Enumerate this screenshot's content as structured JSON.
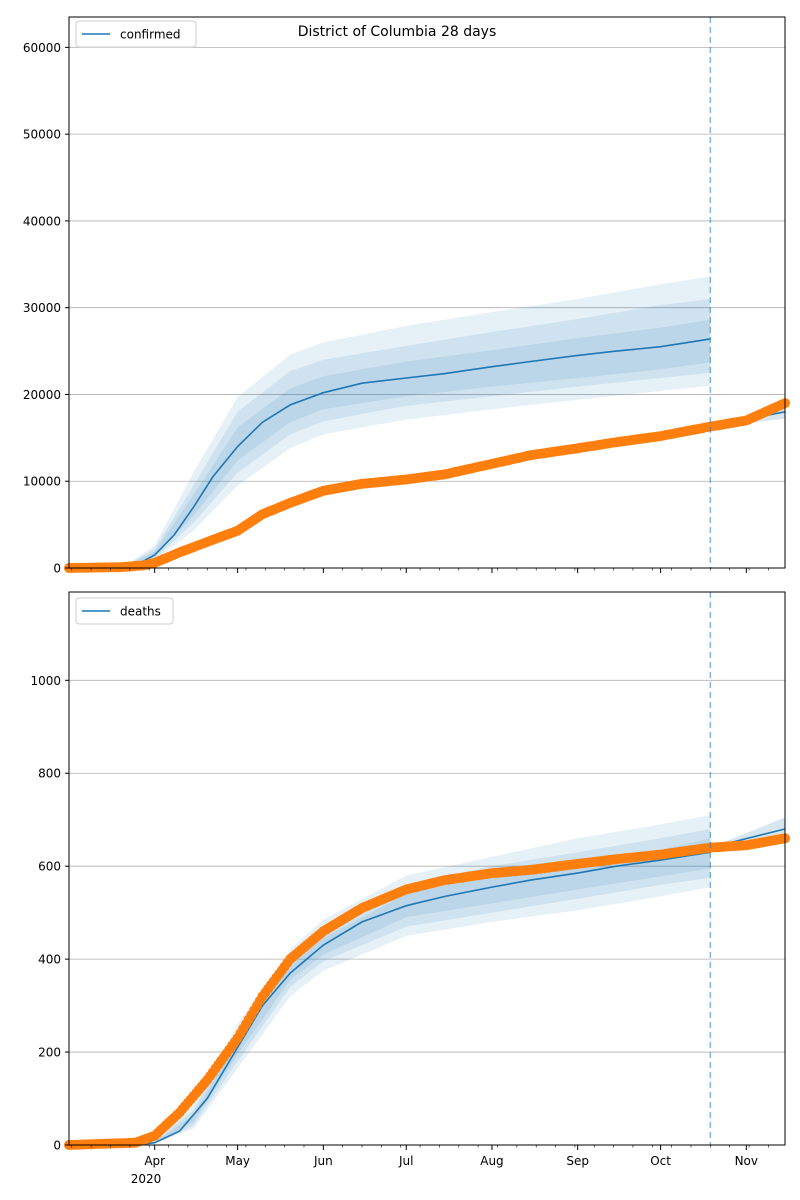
{
  "chart_data": [
    {
      "type": "line",
      "title": "District of Columbia 28 days",
      "legend": {
        "label": "confirmed",
        "placement": "top-left"
      },
      "x_range": [
        "2020-03-01",
        "2020-11-15"
      ],
      "ylim": [
        0,
        63500
      ],
      "y_ticks": [
        0,
        10000,
        20000,
        30000,
        40000,
        50000,
        60000
      ],
      "grid": "horizontal",
      "forecast_start": "2020-10-19",
      "colors": {
        "model": "#1f77b4",
        "observed": "#ff7f0e",
        "band": "#1f77b4"
      },
      "model_median": {
        "x": [
          "2020-03-20",
          "2020-03-25",
          "2020-04-01",
          "2020-04-08",
          "2020-04-15",
          "2020-04-22",
          "2020-05-01",
          "2020-05-10",
          "2020-05-20",
          "2020-06-01",
          "2020-06-15",
          "2020-07-01",
          "2020-07-15",
          "2020-08-01",
          "2020-08-15",
          "2020-09-01",
          "2020-09-15",
          "2020-10-01",
          "2020-10-19"
        ],
        "y": [
          0,
          300,
          1500,
          3800,
          7000,
          10500,
          14000,
          16800,
          18800,
          20200,
          21300,
          21900,
          22400,
          23200,
          23800,
          24500,
          25000,
          25500,
          26400
        ]
      },
      "bands": [
        {
          "x": [
            "2020-03-20",
            "2020-04-01",
            "2020-04-15",
            "2020-05-01",
            "2020-05-20",
            "2020-06-01",
            "2020-07-01",
            "2020-08-01",
            "2020-09-01",
            "2020-10-01",
            "2020-10-19"
          ],
          "lower": [
            0,
            900,
            4300,
            9500,
            13800,
            15400,
            17100,
            18300,
            19400,
            20400,
            21000
          ],
          "upper": [
            0,
            2600,
            11000,
            19700,
            24600,
            26000,
            27900,
            29500,
            31000,
            32700,
            33600
          ]
        },
        {
          "x": [
            "2020-03-20",
            "2020-04-01",
            "2020-04-15",
            "2020-05-01",
            "2020-05-20",
            "2020-06-01",
            "2020-07-01",
            "2020-08-01",
            "2020-09-01",
            "2020-10-01",
            "2020-10-19"
          ],
          "lower": [
            0,
            1100,
            5200,
            11000,
            15400,
            16900,
            18700,
            19800,
            20900,
            21900,
            22500
          ],
          "upper": [
            0,
            2200,
            9500,
            18000,
            22700,
            24000,
            25600,
            27200,
            28700,
            30300,
            31000
          ]
        },
        {
          "x": [
            "2020-03-20",
            "2020-04-01",
            "2020-04-15",
            "2020-05-01",
            "2020-05-20",
            "2020-06-01",
            "2020-07-01",
            "2020-08-01",
            "2020-09-01",
            "2020-10-01",
            "2020-10-19"
          ],
          "lower": [
            0,
            1300,
            6000,
            12400,
            16800,
            18300,
            19800,
            20900,
            21900,
            22900,
            23700
          ],
          "upper": [
            0,
            1900,
            8400,
            16200,
            20700,
            22100,
            23800,
            25100,
            26500,
            27700,
            28600
          ]
        }
      ],
      "model_forecast": {
        "x": [
          "2020-10-19",
          "2020-11-15"
        ],
        "y": [
          16300,
          18000
        ],
        "lower": [
          16300,
          17200
        ],
        "upper": [
          16300,
          18900
        ]
      },
      "observed": {
        "x": [
          "2020-03-01",
          "2020-03-20",
          "2020-03-28",
          "2020-04-01",
          "2020-04-10",
          "2020-04-20",
          "2020-05-01",
          "2020-05-10",
          "2020-05-20",
          "2020-06-01",
          "2020-06-15",
          "2020-07-01",
          "2020-07-15",
          "2020-08-01",
          "2020-08-15",
          "2020-09-01",
          "2020-09-15",
          "2020-10-01",
          "2020-10-19",
          "2020-11-01",
          "2020-11-15"
        ],
        "y": [
          0,
          100,
          300,
          600,
          1800,
          3000,
          4300,
          6200,
          7500,
          8900,
          9700,
          10200,
          10800,
          12000,
          13000,
          13800,
          14500,
          15200,
          16300,
          17000,
          19000
        ]
      }
    },
    {
      "type": "line",
      "title": "",
      "legend": {
        "label": "deaths",
        "placement": "top-left"
      },
      "x_range": [
        "2020-03-01",
        "2020-11-15"
      ],
      "ylim": [
        0,
        1190
      ],
      "y_ticks": [
        0,
        200,
        400,
        600,
        800,
        1000
      ],
      "x_ticks": [
        "Apr",
        "May",
        "Jun",
        "Jul",
        "Aug",
        "Sep",
        "Oct",
        "Nov"
      ],
      "x_year_label": "2020",
      "grid": "horizontal",
      "forecast_start": "2020-10-19",
      "colors": {
        "model": "#1f77b4",
        "observed": "#ff7f0e",
        "band": "#1f77b4"
      },
      "model_median": {
        "x": [
          "2020-03-25",
          "2020-04-01",
          "2020-04-10",
          "2020-04-20",
          "2020-05-01",
          "2020-05-10",
          "2020-05-20",
          "2020-06-01",
          "2020-06-15",
          "2020-07-01",
          "2020-07-15",
          "2020-08-01",
          "2020-08-15",
          "2020-09-01",
          "2020-09-15",
          "2020-10-01",
          "2020-10-19"
        ],
        "y": [
          0,
          5,
          30,
          100,
          210,
          300,
          370,
          430,
          480,
          515,
          535,
          555,
          570,
          585,
          600,
          613,
          630
        ]
      },
      "bands": [
        {
          "x": [
            "2020-03-25",
            "2020-04-01",
            "2020-04-15",
            "2020-05-01",
            "2020-05-20",
            "2020-06-01",
            "2020-07-01",
            "2020-08-01",
            "2020-09-01",
            "2020-10-01",
            "2020-10-19"
          ],
          "lower": [
            0,
            3,
            35,
            165,
            320,
            375,
            450,
            480,
            505,
            535,
            555
          ],
          "upper": [
            0,
            9,
            85,
            260,
            420,
            485,
            580,
            620,
            660,
            690,
            710
          ]
        },
        {
          "x": [
            "2020-03-25",
            "2020-04-01",
            "2020-04-15",
            "2020-05-01",
            "2020-05-20",
            "2020-06-01",
            "2020-07-01",
            "2020-08-01",
            "2020-09-01",
            "2020-10-01",
            "2020-10-19"
          ],
          "lower": [
            0,
            4,
            42,
            180,
            340,
            395,
            470,
            500,
            530,
            560,
            575
          ],
          "upper": [
            0,
            7,
            75,
            245,
            400,
            465,
            560,
            600,
            630,
            660,
            680
          ]
        },
        {
          "x": [
            "2020-03-25",
            "2020-04-01",
            "2020-04-15",
            "2020-05-01",
            "2020-05-20",
            "2020-06-01",
            "2020-07-01",
            "2020-08-01",
            "2020-09-01",
            "2020-10-01",
            "2020-10-19"
          ],
          "lower": [
            0,
            4,
            50,
            195,
            355,
            410,
            490,
            520,
            550,
            578,
            595
          ],
          "upper": [
            0,
            6,
            65,
            225,
            385,
            445,
            540,
            580,
            608,
            635,
            660
          ]
        }
      ],
      "model_forecast": {
        "x": [
          "2020-10-19",
          "2020-11-15"
        ],
        "y": [
          640,
          680
        ],
        "lower": [
          640,
          665
        ],
        "upper": [
          640,
          705
        ]
      },
      "observed": {
        "x": [
          "2020-03-01",
          "2020-03-25",
          "2020-04-01",
          "2020-04-10",
          "2020-04-20",
          "2020-05-01",
          "2020-05-10",
          "2020-05-20",
          "2020-06-01",
          "2020-06-15",
          "2020-07-01",
          "2020-07-15",
          "2020-08-01",
          "2020-08-15",
          "2020-09-01",
          "2020-09-15",
          "2020-10-01",
          "2020-10-19",
          "2020-11-01",
          "2020-11-15"
        ],
        "y": [
          0,
          5,
          20,
          70,
          140,
          230,
          320,
          400,
          460,
          510,
          550,
          570,
          585,
          592,
          605,
          615,
          625,
          640,
          645,
          660
        ]
      }
    }
  ]
}
